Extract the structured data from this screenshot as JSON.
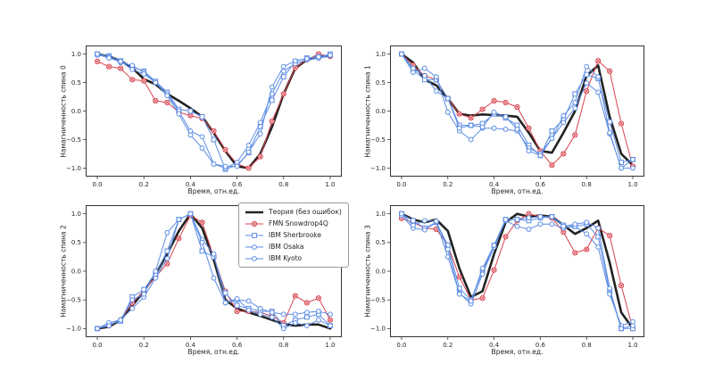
{
  "figure": {
    "background": "#ffffff",
    "frame_color": "#333333",
    "text_color": "#262626"
  },
  "legend": {
    "position": "inside-bottom-left-chart-top-right",
    "entries": [
      {
        "label": "Теория (без ошибок)",
        "color": "#222222",
        "marker": "none",
        "line_width": 2.6
      },
      {
        "label": "FMN Snowdrop4Q",
        "color": "#d8434e",
        "marker": "circle-x",
        "line_width": 1
      },
      {
        "label": "IBM Sherbrooke",
        "color": "#5b8ce4",
        "marker": "square",
        "line_width": 1
      },
      {
        "label": "IBM Osaka",
        "color": "#5b8ce4",
        "marker": "circle",
        "line_width": 1
      },
      {
        "label": "IBM Kyoto",
        "color": "#5b8ce4",
        "marker": "circle",
        "line_width": 1
      }
    ]
  },
  "chart_data": [
    {
      "type": "line",
      "title": "",
      "ylabel": "Намагниченность спина 0",
      "xlabel": "Время, отн.ед.",
      "xlim": [
        -0.05,
        1.05
      ],
      "ylim": [
        -1.15,
        1.15
      ],
      "xticks": [
        0.0,
        0.2,
        0.4,
        0.6,
        0.8,
        1.0
      ],
      "yticks": [
        1.0,
        0.5,
        0.0,
        -0.5,
        -1.0
      ],
      "x": [
        0,
        0.05,
        0.1,
        0.15,
        0.2,
        0.25,
        0.3,
        0.35,
        0.4,
        0.45,
        0.5,
        0.55,
        0.6,
        0.65,
        0.7,
        0.75,
        0.8,
        0.85,
        0.9,
        0.95,
        1.0
      ],
      "series": [
        {
          "name": "Теория (без ошибок)",
          "values": [
            1.0,
            0.96,
            0.88,
            0.76,
            0.56,
            0.47,
            0.3,
            0.18,
            0.05,
            -0.1,
            -0.38,
            -0.7,
            -0.97,
            -1.0,
            -0.75,
            -0.28,
            0.3,
            0.75,
            0.9,
            0.95,
            0.97
          ]
        },
        {
          "name": "FMN Snowdrop4Q",
          "values": [
            0.87,
            0.78,
            0.75,
            0.55,
            0.53,
            0.18,
            0.15,
            -0.02,
            -0.08,
            -0.13,
            -0.35,
            -0.68,
            -0.93,
            -1.0,
            -0.8,
            -0.18,
            0.3,
            0.76,
            0.9,
            1.0,
            0.96
          ]
        },
        {
          "name": "IBM Sherbrooke",
          "values": [
            1.0,
            0.97,
            0.88,
            0.78,
            0.7,
            0.52,
            0.33,
            0.03,
            0.0,
            -0.1,
            -0.5,
            -1.02,
            -0.95,
            -0.73,
            -0.27,
            0.19,
            0.6,
            0.87,
            0.93,
            0.95,
            1.0
          ]
        },
        {
          "name": "IBM Osaka",
          "values": [
            0.98,
            0.95,
            0.85,
            0.8,
            0.68,
            0.5,
            0.3,
            0.0,
            -0.35,
            -0.45,
            -0.93,
            -1.0,
            -0.9,
            -0.6,
            -0.2,
            0.3,
            0.7,
            0.83,
            0.9,
            0.93,
            0.97
          ]
        },
        {
          "name": "IBM Kyoto",
          "values": [
            1.0,
            0.93,
            0.87,
            0.73,
            0.65,
            0.5,
            0.27,
            -0.05,
            -0.42,
            -0.65,
            -0.93,
            -0.97,
            -0.97,
            -0.72,
            -0.4,
            0.42,
            0.78,
            0.88,
            0.92,
            0.95,
            0.98
          ]
        }
      ]
    },
    {
      "type": "line",
      "title": "",
      "ylabel": "Намагниченность спина 1",
      "xlabel": "Время, отн.ед.",
      "xlim": [
        -0.05,
        1.05
      ],
      "ylim": [
        -1.15,
        1.15
      ],
      "xticks": [
        0.0,
        0.2,
        0.4,
        0.6,
        0.8,
        1.0
      ],
      "yticks": [
        1.0,
        0.5,
        0.0,
        -0.5,
        -1.0
      ],
      "x": [
        0,
        0.05,
        0.1,
        0.15,
        0.2,
        0.25,
        0.3,
        0.35,
        0.4,
        0.45,
        0.5,
        0.55,
        0.6,
        0.65,
        0.7,
        0.75,
        0.8,
        0.85,
        0.9,
        0.95,
        1.0
      ],
      "series": [
        {
          "name": "Теория (без ошибок)",
          "values": [
            1.0,
            0.85,
            0.55,
            0.45,
            0.22,
            -0.05,
            -0.08,
            -0.06,
            -0.07,
            -0.08,
            -0.1,
            -0.38,
            -0.7,
            -0.73,
            -0.38,
            0.0,
            0.62,
            0.8,
            -0.1,
            -0.75,
            -0.95
          ]
        },
        {
          "name": "FMN Snowdrop4Q",
          "values": [
            1.0,
            0.8,
            0.62,
            0.55,
            0.22,
            -0.05,
            -0.12,
            0.03,
            0.18,
            0.15,
            0.07,
            -0.3,
            -0.7,
            -0.95,
            -0.75,
            -0.42,
            0.35,
            0.88,
            0.7,
            -0.22,
            -0.97
          ]
        },
        {
          "name": "IBM Sherbrooke",
          "values": [
            1.0,
            0.72,
            0.55,
            0.55,
            0.22,
            -0.25,
            -0.25,
            -0.22,
            -0.05,
            -0.12,
            -0.25,
            -0.6,
            -0.78,
            -0.35,
            -0.15,
            0.3,
            0.64,
            0.57,
            -0.19,
            -0.9,
            -0.85
          ]
        },
        {
          "name": "IBM Osaka",
          "values": [
            1.0,
            0.68,
            0.75,
            0.6,
            -0.02,
            -0.35,
            -0.5,
            -0.3,
            -0.3,
            -0.32,
            -0.35,
            -0.65,
            -0.75,
            -0.48,
            -0.2,
            0.05,
            0.49,
            0.33,
            -0.4,
            -1.0,
            -1.0
          ]
        },
        {
          "name": "IBM Kyoto",
          "values": [
            1.0,
            0.75,
            0.62,
            0.35,
            0.22,
            -0.3,
            -0.25,
            -0.28,
            -0.02,
            -0.1,
            -0.32,
            -0.7,
            -0.78,
            -0.48,
            -0.08,
            0.15,
            0.78,
            0.6,
            -0.38,
            -1.0,
            -0.85
          ]
        }
      ]
    },
    {
      "type": "line",
      "title": "",
      "ylabel": "Намагниченность спина 2",
      "xlabel": "Время, отн.ед.",
      "xlim": [
        -0.05,
        1.05
      ],
      "ylim": [
        -1.15,
        1.15
      ],
      "xticks": [
        0.0,
        0.2,
        0.4,
        0.6,
        0.8,
        1.0
      ],
      "yticks": [
        1.0,
        0.5,
        0.0,
        -0.5,
        -1.0
      ],
      "x": [
        0,
        0.05,
        0.1,
        0.15,
        0.2,
        0.25,
        0.3,
        0.35,
        0.4,
        0.45,
        0.5,
        0.55,
        0.6,
        0.65,
        0.7,
        0.75,
        0.8,
        0.85,
        0.9,
        0.95,
        1.0
      ],
      "series": [
        {
          "name": "Теория (без ошибок)",
          "values": [
            -1.0,
            -0.97,
            -0.85,
            -0.6,
            -0.35,
            -0.05,
            0.3,
            0.7,
            1.0,
            0.75,
            0.2,
            -0.5,
            -0.65,
            -0.72,
            -0.78,
            -0.85,
            -0.92,
            -0.95,
            -0.93,
            -0.93,
            -1.0
          ]
        },
        {
          "name": "FMN Snowdrop4Q",
          "values": [
            -1.0,
            -0.95,
            -0.85,
            -0.55,
            -0.35,
            -0.1,
            0.13,
            0.57,
            0.97,
            0.85,
            0.25,
            -0.35,
            -0.7,
            -0.7,
            -0.72,
            -0.78,
            -0.9,
            -0.43,
            -0.55,
            -0.47,
            -0.85
          ]
        },
        {
          "name": "IBM Sherbrooke",
          "values": [
            -1.0,
            -0.93,
            -0.87,
            -0.45,
            -0.32,
            -0.05,
            0.35,
            0.9,
            1.0,
            0.35,
            0.25,
            -0.38,
            -0.6,
            -0.65,
            -0.7,
            -0.7,
            -0.95,
            -0.85,
            -0.8,
            -0.75,
            -0.95
          ]
        },
        {
          "name": "IBM Osaka",
          "values": [
            -1.0,
            -0.9,
            -0.85,
            -0.65,
            -0.45,
            -0.12,
            0.22,
            0.9,
            1.0,
            0.55,
            0.3,
            -0.55,
            -0.5,
            -0.52,
            -0.65,
            -0.72,
            -0.75,
            -0.75,
            -0.72,
            -0.7,
            -0.75
          ]
        },
        {
          "name": "IBM Kyoto",
          "values": [
            -1.0,
            -0.95,
            -0.85,
            -0.5,
            -0.4,
            0.0,
            0.67,
            0.9,
            1.0,
            0.5,
            -0.12,
            -0.55,
            -0.48,
            -0.68,
            -0.75,
            -0.8,
            -1.0,
            -0.9,
            -0.95,
            -0.85,
            -0.95
          ]
        }
      ]
    },
    {
      "type": "line",
      "title": "",
      "ylabel": "Намагниченность спина 3",
      "xlabel": "Время, отн.ед.",
      "xlim": [
        -0.05,
        1.05
      ],
      "ylim": [
        -1.15,
        1.15
      ],
      "xticks": [
        0.0,
        0.2,
        0.4,
        0.6,
        0.8,
        1.0
      ],
      "yticks": [
        1.0,
        0.5,
        0.0,
        -0.5,
        -1.0
      ],
      "x": [
        0,
        0.05,
        0.1,
        0.15,
        0.2,
        0.25,
        0.3,
        0.35,
        0.4,
        0.45,
        0.5,
        0.55,
        0.6,
        0.65,
        0.7,
        0.75,
        0.8,
        0.85,
        0.9,
        0.95,
        1.0
      ],
      "series": [
        {
          "name": "Теория (без ошибок)",
          "values": [
            1.0,
            0.9,
            0.85,
            0.9,
            0.7,
            0.05,
            -0.45,
            -0.35,
            0.3,
            0.85,
            1.0,
            0.95,
            0.97,
            0.95,
            0.8,
            0.65,
            0.75,
            0.88,
            0.15,
            -0.72,
            -1.0
          ]
        },
        {
          "name": "FMN Snowdrop4Q",
          "values": [
            0.92,
            0.85,
            0.75,
            0.73,
            0.45,
            -0.1,
            -0.5,
            -0.47,
            0.02,
            0.6,
            0.88,
            1.0,
            0.95,
            0.93,
            0.68,
            0.32,
            0.38,
            0.75,
            0.62,
            -0.25,
            -1.0
          ]
        },
        {
          "name": "IBM Sherbrooke",
          "values": [
            1.0,
            0.88,
            0.75,
            0.85,
            0.45,
            -0.3,
            -0.5,
            0.0,
            0.45,
            0.9,
            0.9,
            0.88,
            0.93,
            0.95,
            0.8,
            0.78,
            0.82,
            0.6,
            -0.35,
            -1.0,
            -1.0
          ]
        },
        {
          "name": "IBM Osaka",
          "values": [
            0.97,
            0.75,
            0.72,
            0.85,
            0.25,
            -0.38,
            -0.57,
            -0.05,
            0.42,
            0.88,
            0.78,
            0.73,
            0.82,
            0.82,
            0.75,
            0.78,
            0.65,
            0.42,
            -0.4,
            -0.95,
            -0.88
          ]
        },
        {
          "name": "IBM Kyoto",
          "values": [
            1.0,
            0.8,
            0.88,
            0.87,
            0.38,
            -0.4,
            -0.52,
            0.05,
            0.45,
            0.9,
            0.9,
            0.93,
            0.95,
            0.95,
            0.78,
            0.82,
            0.85,
            0.75,
            -0.3,
            -1.0,
            -0.95
          ]
        }
      ]
    }
  ]
}
